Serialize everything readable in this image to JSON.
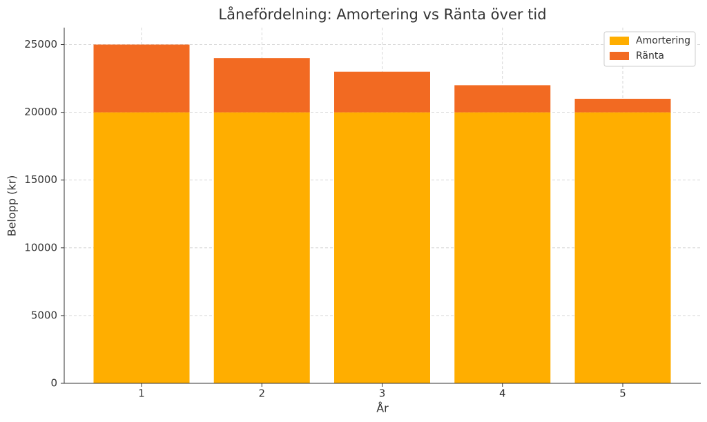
{
  "chart_data": {
    "type": "stacked-bar",
    "title": "Lånefördelning: Amortering vs Ränta över tid",
    "xlabel": "År",
    "ylabel": "Belopp (kr)",
    "categories": [
      "1",
      "2",
      "3",
      "4",
      "5"
    ],
    "series": [
      {
        "name": "Amortering",
        "color": "#ffae00",
        "values": [
          20000,
          20000,
          20000,
          20000,
          20000
        ]
      },
      {
        "name": "Ränta",
        "color": "#f26a22",
        "values": [
          5000,
          4000,
          3000,
          2000,
          1000
        ]
      }
    ],
    "ylim": [
      0,
      26250
    ],
    "yticks": [
      0,
      5000,
      10000,
      15000,
      20000,
      25000
    ],
    "grid": true,
    "legend": "upper right"
  }
}
